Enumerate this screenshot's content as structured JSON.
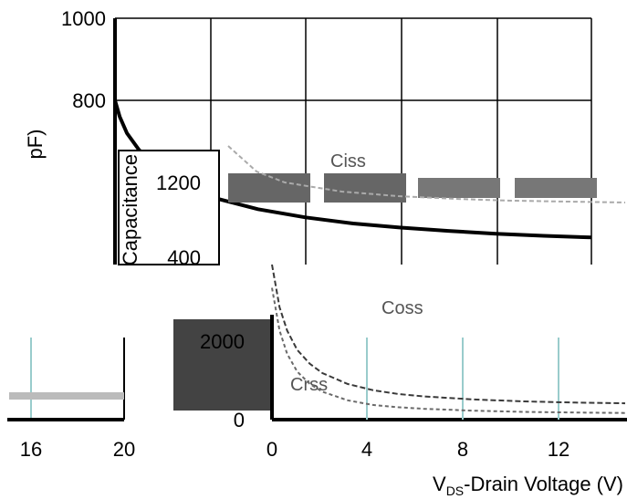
{
  "chart_data": [
    {
      "type": "line",
      "title": "",
      "xlabel": "",
      "ylabel": "pF)",
      "ylim": [
        0,
        1000
      ],
      "y_ticks": [
        "1000",
        "800"
      ],
      "series": [
        {
          "name": "",
          "color": "#000000",
          "x": [
            0,
            0.2,
            0.5,
            1,
            1.5,
            2,
            3,
            4,
            6,
            8,
            10,
            12,
            14,
            16,
            18,
            20
          ],
          "y": [
            800,
            760,
            720,
            680,
            650,
            625,
            590,
            565,
            535,
            515,
            500,
            490,
            482,
            475,
            470,
            466
          ]
        }
      ],
      "grid": true
    },
    {
      "type": "line",
      "title": "",
      "xlabel": "Drain Voltage (V)",
      "xlabel_prefix": "V",
      "xlabel_subscript": "DS",
      "xlabel_dash": "-",
      "ylim": [
        0,
        2000
      ],
      "xlim": [
        0,
        14
      ],
      "x_ticks": [
        "16",
        "20",
        "0",
        "4",
        "8",
        "12"
      ],
      "y_ticks": [
        "2000",
        "0"
      ],
      "series": [
        {
          "name": "Coss",
          "color": "#3a3a3a",
          "x": [
            0,
            0.3,
            0.6,
            1,
            1.5,
            2,
            3,
            4,
            5,
            6,
            8,
            10,
            12,
            14
          ],
          "y": [
            2000,
            1450,
            1150,
            900,
            720,
            600,
            460,
            380,
            330,
            300,
            260,
            235,
            220,
            210
          ]
        },
        {
          "name": "Crss",
          "color": "#6a6a6a",
          "x": [
            0,
            0.3,
            0.6,
            1,
            1.5,
            2,
            3,
            4,
            5,
            6,
            8,
            10,
            12,
            14
          ],
          "y": [
            1700,
            1150,
            850,
            620,
            460,
            360,
            250,
            190,
            160,
            140,
            115,
            100,
            92,
            86
          ]
        }
      ],
      "grid": true
    },
    {
      "type": "line",
      "title": "",
      "y_ticks": [
        "1200",
        "400"
      ],
      "ylabel": "Capacitance",
      "series": [
        {
          "name": "Ciss",
          "color": "#888888",
          "x": [
            0,
            1,
            2,
            4,
            6,
            8,
            10,
            12,
            14
          ],
          "y": [
            1100,
            960,
            900,
            850,
            825,
            810,
            800,
            795,
            790
          ]
        }
      ],
      "grid": true
    }
  ]
}
